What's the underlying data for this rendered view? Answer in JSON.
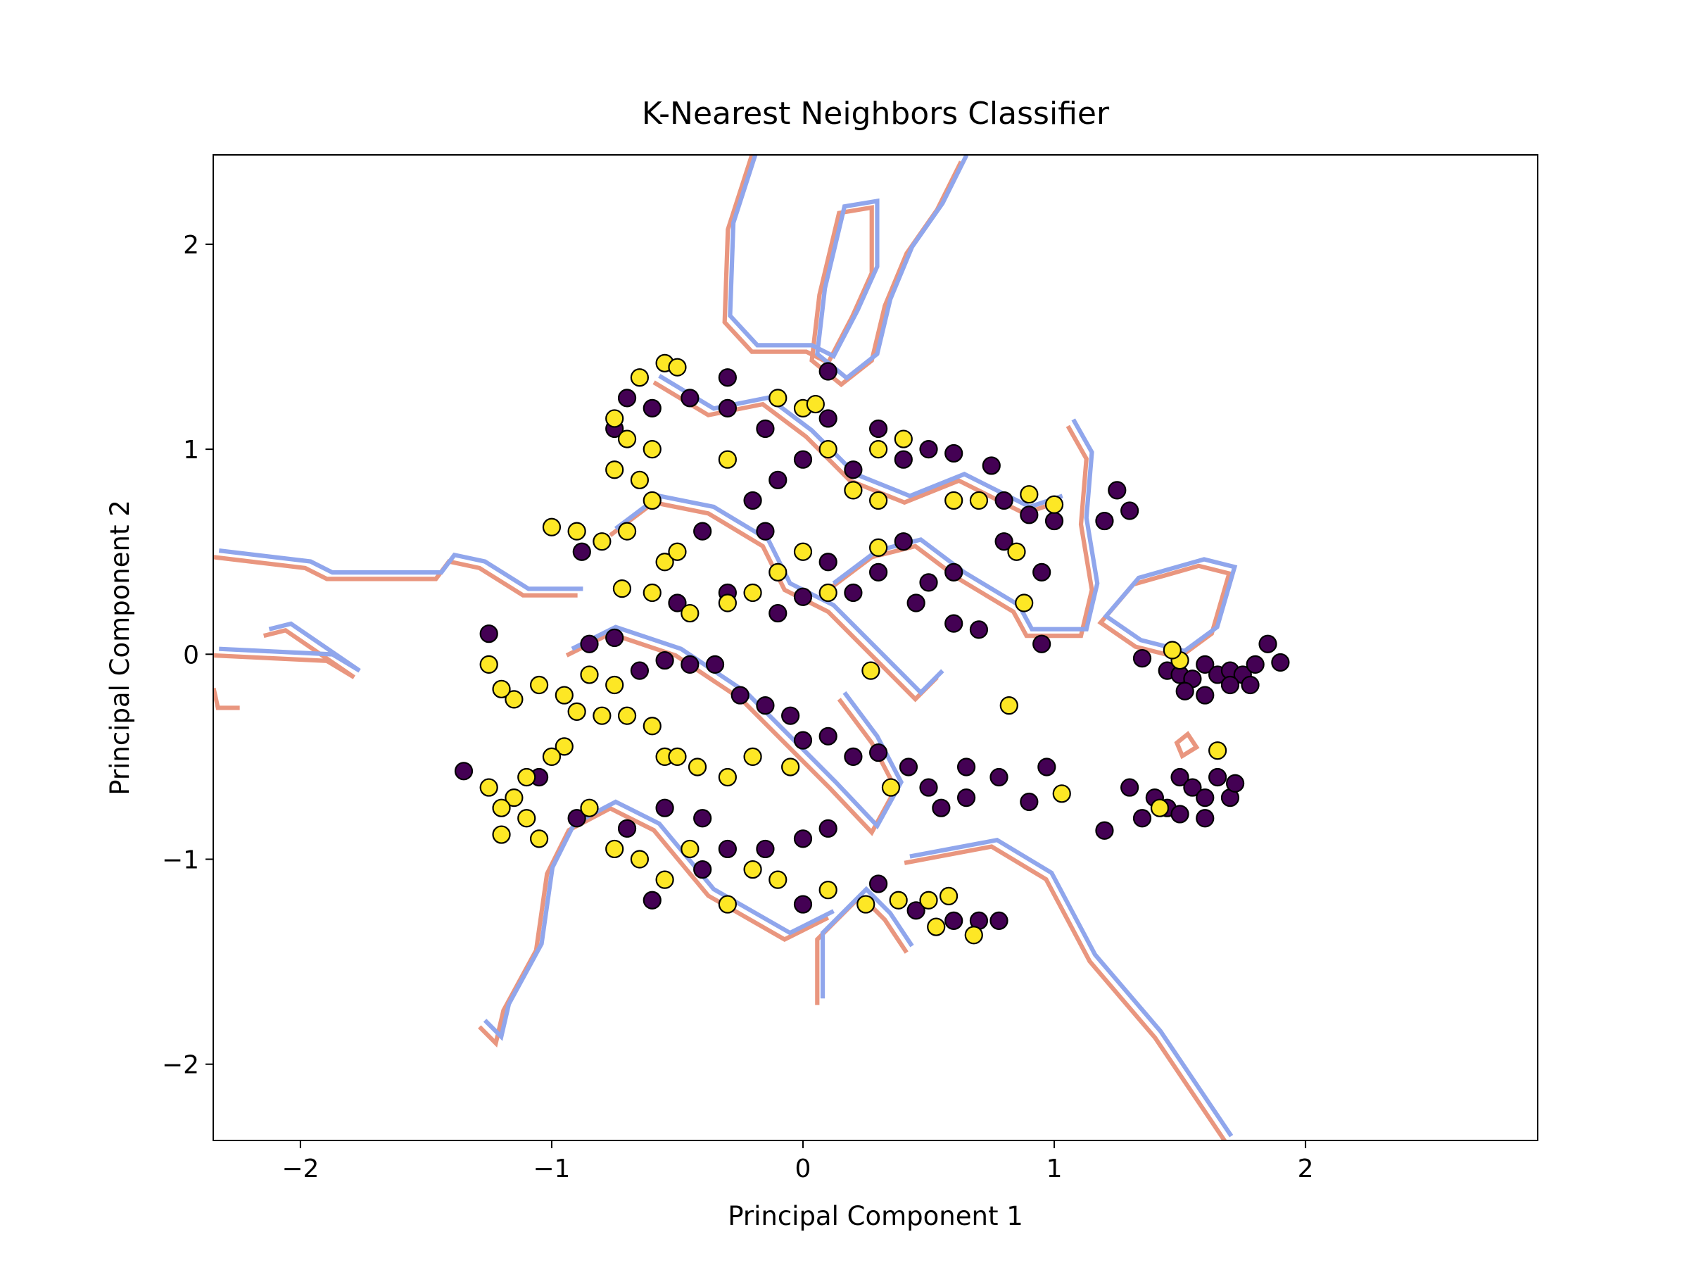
{
  "chart_data": {
    "type": "scatter",
    "title": "K-Nearest Neighbors Classifier",
    "x_label": "Principal Component 1",
    "y_label": "Principal Component 2",
    "xlim": [
      -2.347,
      2.924
    ],
    "ylim": [
      -2.372,
      2.436
    ],
    "xticks": [
      {
        "value": -2,
        "label": "−2"
      },
      {
        "value": -1,
        "label": "−1"
      },
      0,
      1,
      2
    ],
    "yticks": [
      {
        "value": -2,
        "label": "−2"
      },
      {
        "value": -1,
        "label": "−1"
      },
      0,
      1,
      2
    ],
    "edge_color": "#000000",
    "series": [
      {
        "color": "#440154",
        "x": [
          1.45,
          1.5,
          1.55,
          1.6,
          1.65,
          1.7,
          1.75,
          1.8,
          1.85,
          1.9,
          1.6,
          1.7,
          1.78,
          1.52,
          1.35,
          1.3,
          1.4,
          1.45,
          1.5,
          1.55,
          1.6,
          1.65,
          1.7,
          1.72,
          1.6,
          1.5,
          1.2,
          1.35,
          0.97,
          0.9,
          0.78,
          0.65,
          0.5,
          0.55,
          0.65,
          0.42,
          0.3,
          0.2,
          0.1,
          0.0,
          -0.05,
          -0.15,
          -0.25,
          -0.35,
          -0.45,
          -0.55,
          -0.65,
          -0.75,
          -0.85,
          -1.25,
          -1.35,
          -1.05,
          -0.9,
          -0.7,
          -0.55,
          -0.4,
          -0.3,
          -0.15,
          0.0,
          0.1,
          -0.6,
          -0.4,
          0.0,
          0.3,
          0.45,
          0.7,
          0.6,
          0.78,
          0.8,
          0.9,
          1.0,
          1.2,
          1.25,
          1.3,
          0.95,
          0.8,
          0.6,
          0.5,
          0.4,
          0.3,
          0.2,
          0.1,
          0.0,
          -0.1,
          -0.3,
          -0.4,
          -0.2,
          -0.1,
          0.0,
          0.2,
          0.4,
          0.5,
          0.6,
          0.75,
          0.3,
          0.1,
          -0.15,
          -0.3,
          -0.45,
          -0.6,
          -0.7,
          -0.75,
          -0.3,
          0.1,
          0.45,
          0.6,
          0.7,
          0.95,
          -0.88,
          -0.5,
          -0.15
        ],
        "y": [
          -0.08,
          -0.1,
          -0.12,
          -0.05,
          -0.1,
          -0.08,
          -0.1,
          -0.05,
          0.05,
          -0.04,
          -0.2,
          -0.15,
          -0.15,
          -0.18,
          -0.02,
          -0.65,
          -0.7,
          -0.75,
          -0.6,
          -0.65,
          -0.7,
          -0.6,
          -0.7,
          -0.63,
          -0.8,
          -0.78,
          -0.86,
          -0.8,
          -0.55,
          -0.72,
          -0.6,
          -0.55,
          -0.65,
          -0.75,
          -0.7,
          -0.55,
          -0.48,
          -0.5,
          -0.4,
          -0.42,
          -0.3,
          -0.25,
          -0.2,
          -0.05,
          -0.05,
          -0.03,
          -0.08,
          0.08,
          0.05,
          0.1,
          -0.57,
          -0.6,
          -0.8,
          -0.85,
          -0.75,
          -0.8,
          -0.95,
          -0.95,
          -0.9,
          -0.85,
          -1.2,
          -1.05,
          -1.22,
          -1.12,
          -1.25,
          -1.3,
          -1.3,
          -1.3,
          0.75,
          0.68,
          0.65,
          0.65,
          0.8,
          0.7,
          0.4,
          0.55,
          0.4,
          0.35,
          0.55,
          0.4,
          0.3,
          0.45,
          0.28,
          0.2,
          0.3,
          0.6,
          0.75,
          0.85,
          0.95,
          0.9,
          0.95,
          1.0,
          0.98,
          0.92,
          1.1,
          1.15,
          1.1,
          1.2,
          1.25,
          1.2,
          1.25,
          1.1,
          1.35,
          1.38,
          0.25,
          0.15,
          0.12,
          0.05,
          0.5,
          0.25,
          0.6
        ]
      },
      {
        "color": "#fde725",
        "x": [
          1.5,
          1.47,
          1.42,
          1.65,
          1.03,
          0.82,
          0.27,
          0.35,
          -0.42,
          -0.55,
          -0.6,
          -0.7,
          -0.8,
          -0.9,
          -0.95,
          -1.05,
          -1.15,
          -1.2,
          -1.25,
          -0.85,
          -0.75,
          -0.95,
          -1.0,
          -1.1,
          -1.15,
          -1.2,
          -1.25,
          -1.1,
          -1.05,
          -1.2,
          -0.85,
          -0.75,
          -0.65,
          -0.55,
          -0.45,
          -0.3,
          -0.2,
          -0.1,
          0.1,
          0.25,
          0.38,
          0.5,
          0.58,
          0.68,
          0.53,
          -0.5,
          -0.3,
          -0.2,
          -0.05,
          -0.55,
          -0.5,
          -0.65,
          -0.75,
          -0.7,
          -0.6,
          -0.65,
          -0.75,
          -0.6,
          -0.7,
          -0.8,
          -0.9,
          -1.0,
          -0.55,
          -0.6,
          -0.5,
          -0.45,
          -0.3,
          -0.2,
          -0.1,
          0.0,
          0.1,
          0.3,
          0.4,
          0.3,
          0.1,
          0.0,
          0.05,
          0.6,
          0.7,
          0.85,
          0.9,
          1.0,
          0.88,
          0.2,
          -0.1,
          0.3,
          -0.3,
          -0.72
        ],
        "y": [
          -0.03,
          0.02,
          -0.75,
          -0.47,
          -0.68,
          -0.25,
          -0.08,
          -0.65,
          -0.55,
          -0.5,
          -0.35,
          -0.3,
          -0.3,
          -0.28,
          -0.2,
          -0.15,
          -0.22,
          -0.17,
          -0.05,
          -0.1,
          -0.15,
          -0.45,
          -0.5,
          -0.6,
          -0.7,
          -0.75,
          -0.65,
          -0.8,
          -0.9,
          -0.88,
          -0.75,
          -0.95,
          -1.0,
          -1.1,
          -0.95,
          -1.22,
          -1.05,
          -1.1,
          -1.15,
          -1.22,
          -1.2,
          -1.2,
          -1.18,
          -1.37,
          -1.33,
          -0.5,
          -0.6,
          -0.5,
          -0.55,
          1.42,
          1.4,
          1.35,
          1.15,
          1.05,
          1.0,
          0.85,
          0.9,
          0.75,
          0.6,
          0.55,
          0.6,
          0.62,
          0.45,
          0.3,
          0.5,
          0.2,
          0.25,
          0.3,
          0.4,
          0.5,
          0.3,
          0.52,
          1.05,
          1.0,
          1.0,
          1.2,
          1.22,
          0.75,
          0.75,
          0.5,
          0.78,
          0.73,
          0.25,
          0.8,
          1.25,
          0.75,
          0.95,
          0.32
        ]
      }
    ]
  }
}
